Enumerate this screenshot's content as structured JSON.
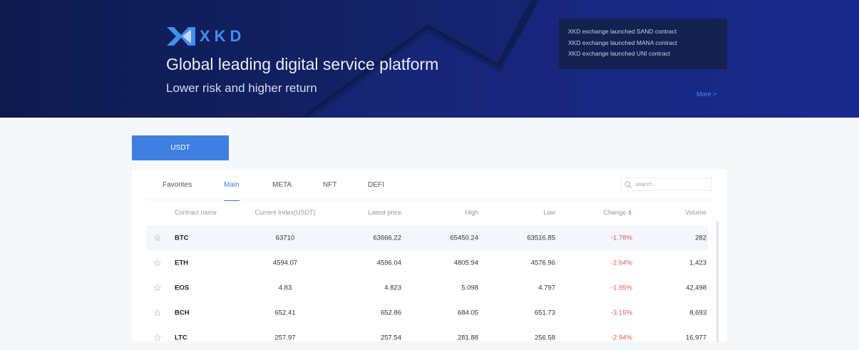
{
  "banner": {
    "brand": "XKD",
    "title": "Global leading digital service platform",
    "subtitle": "Lower risk and higher return",
    "news": [
      "XKD exchange launched SAND contract",
      "XKD exchange launched MANA contract",
      "XKD exchange launched UNI contract"
    ],
    "more": "More >"
  },
  "market_button": "USDT",
  "tabs": [
    {
      "label": "Favorites"
    },
    {
      "label": "Main",
      "active": true
    },
    {
      "label": "META"
    },
    {
      "label": "NFT"
    },
    {
      "label": "DEFI"
    }
  ],
  "search": {
    "placeholder": "search"
  },
  "columns": [
    "Contract name",
    "Current Index(USDT)",
    "Latest price",
    "High",
    "Low",
    "Change",
    "Volume"
  ],
  "rows": [
    {
      "name": "BTC",
      "index": "63710",
      "latest": "63666.22",
      "high": "65450.24",
      "low": "63516.85",
      "change": "-1.78%",
      "volume": "282"
    },
    {
      "name": "ETH",
      "index": "4594.07",
      "latest": "4596.04",
      "high": "4805.94",
      "low": "4576.96",
      "change": "-2.64%",
      "volume": "1,423"
    },
    {
      "name": "EOS",
      "index": "4.83",
      "latest": "4.823",
      "high": "5.098",
      "low": "4.797",
      "change": "-1.95%",
      "volume": "42,498"
    },
    {
      "name": "BCH",
      "index": "652.41",
      "latest": "652.86",
      "high": "684.05",
      "low": "651.73",
      "change": "-3.15%",
      "volume": "8,693"
    },
    {
      "name": "LTC",
      "index": "257.97",
      "latest": "257.54",
      "high": "281.88",
      "low": "256.58",
      "change": "-2.94%",
      "volume": "16,977"
    }
  ],
  "colors": {
    "accent": "#3f7fe0",
    "negative": "#e85a5a",
    "banner": "#15236b"
  }
}
